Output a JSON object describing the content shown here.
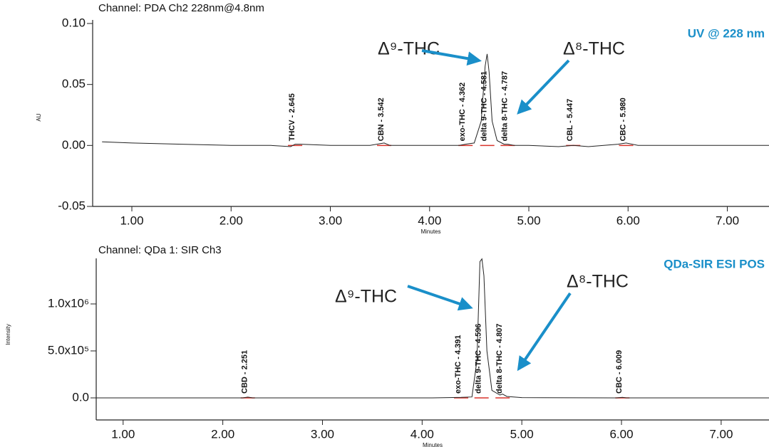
{
  "chart_data": [
    {
      "type": "line",
      "title": "Channel: PDA Ch2 228nm@4.8nm",
      "corner_label": "UV @ 228 nm",
      "y_label": "AU",
      "x_label": "Minutes",
      "color": "#222222",
      "peak_color": "#d9342b",
      "x": [
        0.7,
        1.0,
        1.5,
        2.0,
        2.4,
        2.6,
        2.645,
        2.7,
        3.0,
        3.4,
        3.542,
        3.6,
        4.0,
        4.3,
        4.362,
        4.45,
        4.52,
        4.56,
        4.58,
        4.6,
        4.63,
        4.68,
        4.75,
        4.787,
        4.85,
        5.0,
        5.3,
        5.447,
        5.6,
        5.9,
        5.98,
        6.1,
        6.5,
        7.0,
        7.42
      ],
      "values": [
        0.003,
        0.002,
        0.001,
        0.0,
        0.0,
        -0.001,
        0.001,
        0.001,
        0.0,
        0.0,
        0.002,
        0.0,
        0.0,
        0.0,
        0.001,
        0.002,
        0.02,
        0.065,
        0.075,
        0.06,
        0.02,
        0.004,
        0.001,
        0.001,
        0.0,
        0.0,
        -0.001,
        0.0,
        -0.001,
        0.001,
        0.002,
        0.0,
        0.0,
        0.0,
        0.0
      ],
      "xlim": [
        0.605,
        7.42
      ],
      "ylim": [
        -0.05,
        0.1
      ],
      "xticks": [
        {
          "value": 1,
          "label": "1.00"
        },
        {
          "value": 2,
          "label": "2.00"
        },
        {
          "value": 3,
          "label": "3.00"
        },
        {
          "value": 4,
          "label": "4.00"
        },
        {
          "value": 5,
          "label": "5.00"
        },
        {
          "value": 6,
          "label": "6.00"
        },
        {
          "value": 7,
          "label": "7.00"
        }
      ],
      "yticks": [
        {
          "value": -0.05,
          "label": "-0.05"
        },
        {
          "value": 0,
          "label": "0.00"
        },
        {
          "value": 0.05,
          "label": "0.05"
        },
        {
          "value": 0.1,
          "label": "0.10"
        }
      ],
      "peaks": [
        {
          "label": "THCV - 2.645",
          "x": 2.645
        },
        {
          "label": "CBN - 3.542",
          "x": 3.542
        },
        {
          "label": "exo-THC - 4.362",
          "x": 4.362
        },
        {
          "label": "delta 9-THC - 4.581",
          "x": 4.581
        },
        {
          "label": "delta 8-THC - 4.787",
          "x": 4.787
        },
        {
          "label": "CBL - 5.447",
          "x": 5.447
        },
        {
          "label": "CBC - 5.980",
          "x": 5.98
        }
      ],
      "annotations": [
        "Δ⁹-THC",
        "Δ⁸-THC"
      ]
    },
    {
      "type": "line",
      "title": "Channel: QDa 1: SIR Ch3",
      "corner_label": "QDa-SIR ESI POS",
      "y_label": "Intensity",
      "x_label": "Minutes",
      "color": "#222222",
      "peak_color": "#d9342b",
      "x": [
        0.73,
        2.2,
        2.251,
        2.3,
        4.1,
        4.391,
        4.5,
        4.55,
        4.58,
        4.6,
        4.62,
        4.65,
        4.7,
        4.78,
        4.807,
        4.85,
        5.0,
        5.95,
        6.009,
        6.05,
        7.48
      ],
      "values": [
        0,
        0,
        8000,
        0,
        0,
        5000,
        10000,
        400000,
        1450000,
        1480000,
        1300000,
        500000,
        80000,
        30000,
        40000,
        15000,
        3000,
        0,
        6000,
        0,
        0
      ],
      "xlim": [
        0.73,
        7.48
      ],
      "ylim": [
        -235000,
        1485000
      ],
      "xticks": [
        {
          "value": 1,
          "label": "1.00"
        },
        {
          "value": 2,
          "label": "2.00"
        },
        {
          "value": 3,
          "label": "3.00"
        },
        {
          "value": 4,
          "label": "4.00"
        },
        {
          "value": 5,
          "label": "5.00"
        },
        {
          "value": 6,
          "label": "6.00"
        },
        {
          "value": 7,
          "label": "7.00"
        }
      ],
      "yticks": [
        {
          "value": 0,
          "label": "0.0"
        },
        {
          "value": 500000,
          "label": "5.0x10⁵"
        },
        {
          "value": 1000000,
          "label": "1.0x10⁶"
        }
      ],
      "peaks": [
        {
          "label": "CBD - 2.251",
          "x": 2.251
        },
        {
          "label": "exo-THC - 4.391",
          "x": 4.391
        },
        {
          "label": "delta 9-THC - 4.596",
          "x": 4.596
        },
        {
          "label": "delta 8-THC - 4.807",
          "x": 4.807
        },
        {
          "label": "CBC - 6.009",
          "x": 6.009
        }
      ],
      "annotations": [
        "Δ⁹-THC",
        "Δ⁸-THC"
      ]
    }
  ]
}
